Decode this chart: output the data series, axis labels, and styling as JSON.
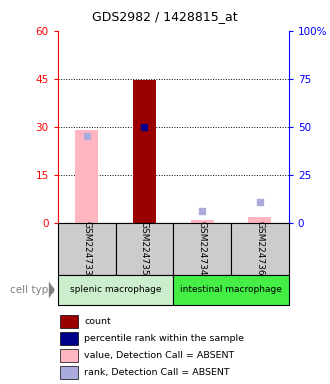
{
  "title": "GDS2982 / 1428815_at",
  "samples": [
    "GSM224733",
    "GSM224735",
    "GSM224734",
    "GSM224736"
  ],
  "bars": {
    "GSM224733": {
      "value": 29.0,
      "rank": 45.0,
      "absent": true
    },
    "GSM224735": {
      "value": 44.5,
      "rank": 50.0,
      "absent": false
    },
    "GSM224734": {
      "value": 0.8,
      "rank": 6.0,
      "absent": true
    },
    "GSM224736": {
      "value": 1.8,
      "rank": 11.0,
      "absent": true
    }
  },
  "ylim": [
    0,
    60
  ],
  "yticks": [
    0,
    15,
    30,
    45,
    60
  ],
  "ytick_labels": [
    "0",
    "15",
    "30",
    "45",
    "60"
  ],
  "y2ticks": [
    0,
    25,
    50,
    75,
    100
  ],
  "y2tick_labels": [
    "0",
    "25",
    "50",
    "75",
    "100%"
  ],
  "color_present_bar": "#9B0000",
  "color_absent_bar": "#FFB6C1",
  "color_present_rank": "#00008B",
  "color_absent_rank": "#AAAADD",
  "cell_type_bg_splenic": "#cceecc",
  "cell_type_bg_intestinal": "#44ee44",
  "sample_box_bg": "#cccccc",
  "legend_items": [
    {
      "label": "count",
      "color": "#9B0000"
    },
    {
      "label": "percentile rank within the sample",
      "color": "#00008B"
    },
    {
      "label": "value, Detection Call = ABSENT",
      "color": "#FFB6C1"
    },
    {
      "label": "rank, Detection Call = ABSENT",
      "color": "#AAAADD"
    }
  ]
}
